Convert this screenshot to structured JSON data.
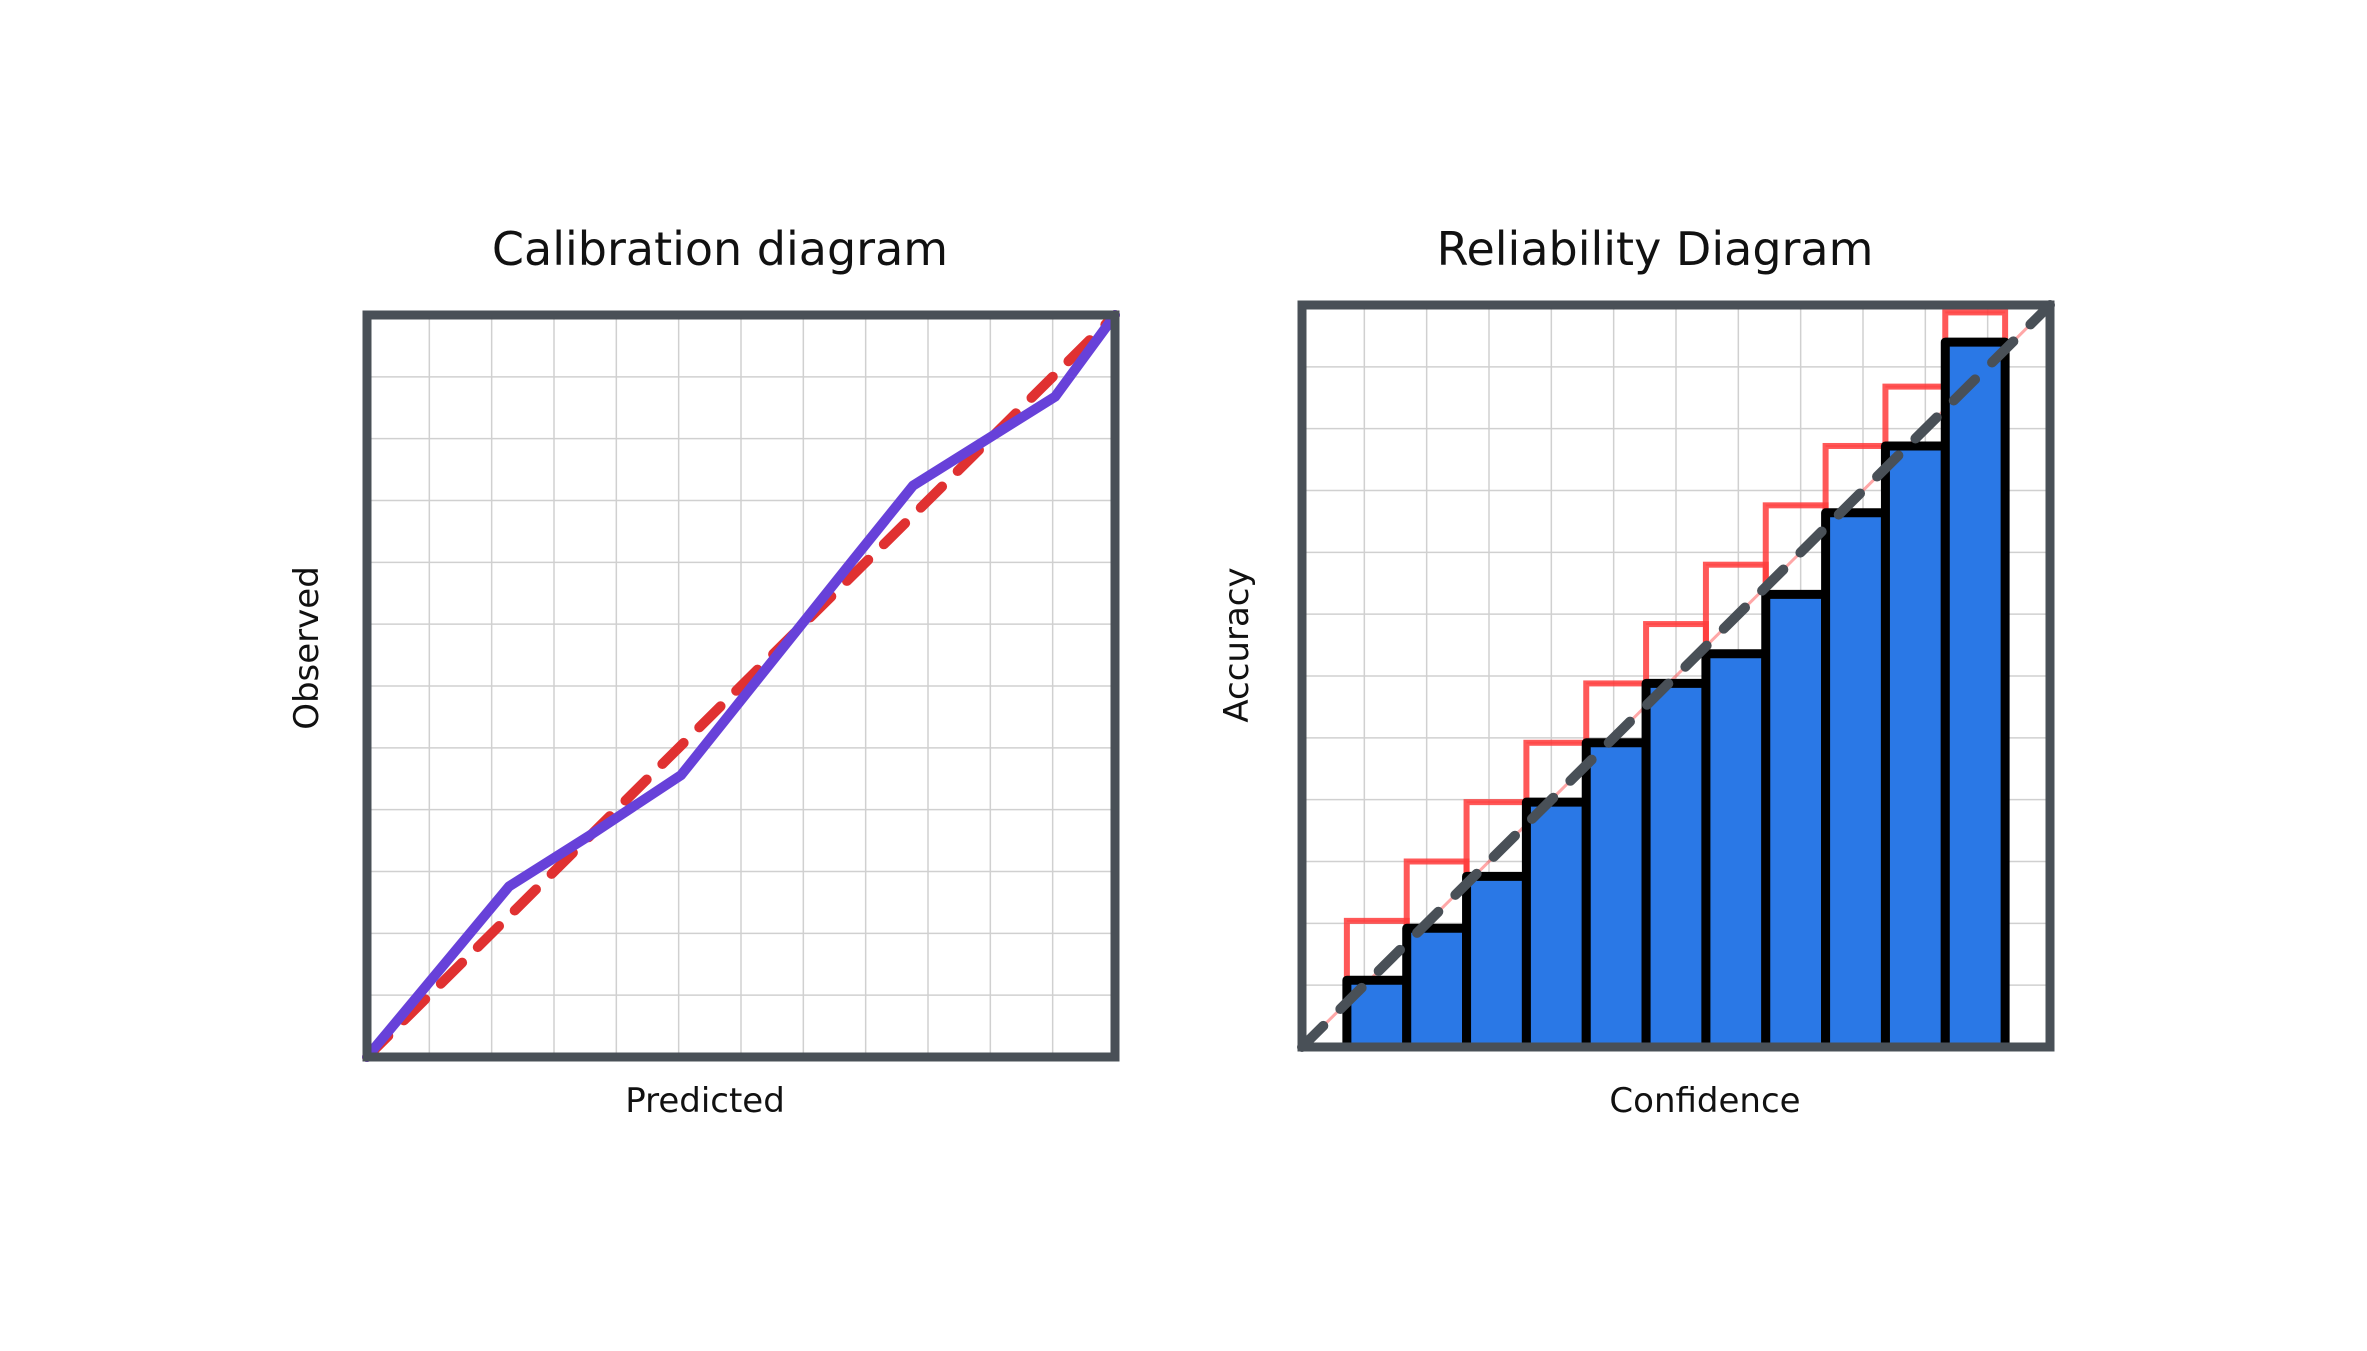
{
  "colors": {
    "frame": "#495057",
    "grid": "#d0d0d0",
    "observed_line": "#6741d9",
    "ideal_line": "#e03131",
    "bar_fill": "#2a78e6",
    "bar_stroke": "#000000",
    "gap_outline": "#ff3b3b",
    "diagonal": "#495057"
  },
  "chart_data": [
    {
      "type": "line",
      "title": "Calibration diagram",
      "xlabel": "Predicted",
      "ylabel": "Observed",
      "xlim": [
        0,
        1
      ],
      "ylim": [
        0,
        1
      ],
      "grid": true,
      "series": [
        {
          "style": "solid",
          "x": [
            0,
            0.19,
            0.3,
            0.42,
            0.65,
            0.73,
            0.92,
            1.0
          ],
          "y": [
            0,
            0.23,
            0.3,
            0.38,
            0.67,
            0.77,
            0.89,
            1.0
          ]
        },
        {
          "style": "dashed",
          "x": [
            0,
            1
          ],
          "y": [
            0,
            1
          ]
        }
      ]
    },
    {
      "type": "bar",
      "title": "Reliability Diagram",
      "xlabel": "Confidence",
      "ylabel": "Accuracy",
      "xlim": [
        0,
        1
      ],
      "ylim": [
        0,
        1
      ],
      "grid": true,
      "bins": [
        0.1,
        0.18,
        0.26,
        0.34,
        0.42,
        0.5,
        0.58,
        0.66,
        0.74,
        0.82,
        0.9
      ],
      "values": [
        0.09,
        0.16,
        0.23,
        0.33,
        0.41,
        0.49,
        0.53,
        0.61,
        0.72,
        0.81,
        0.95
      ],
      "expected": [
        0.17,
        0.25,
        0.33,
        0.41,
        0.49,
        0.57,
        0.65,
        0.73,
        0.81,
        0.89,
        0.99
      ],
      "diagonal": true
    }
  ]
}
